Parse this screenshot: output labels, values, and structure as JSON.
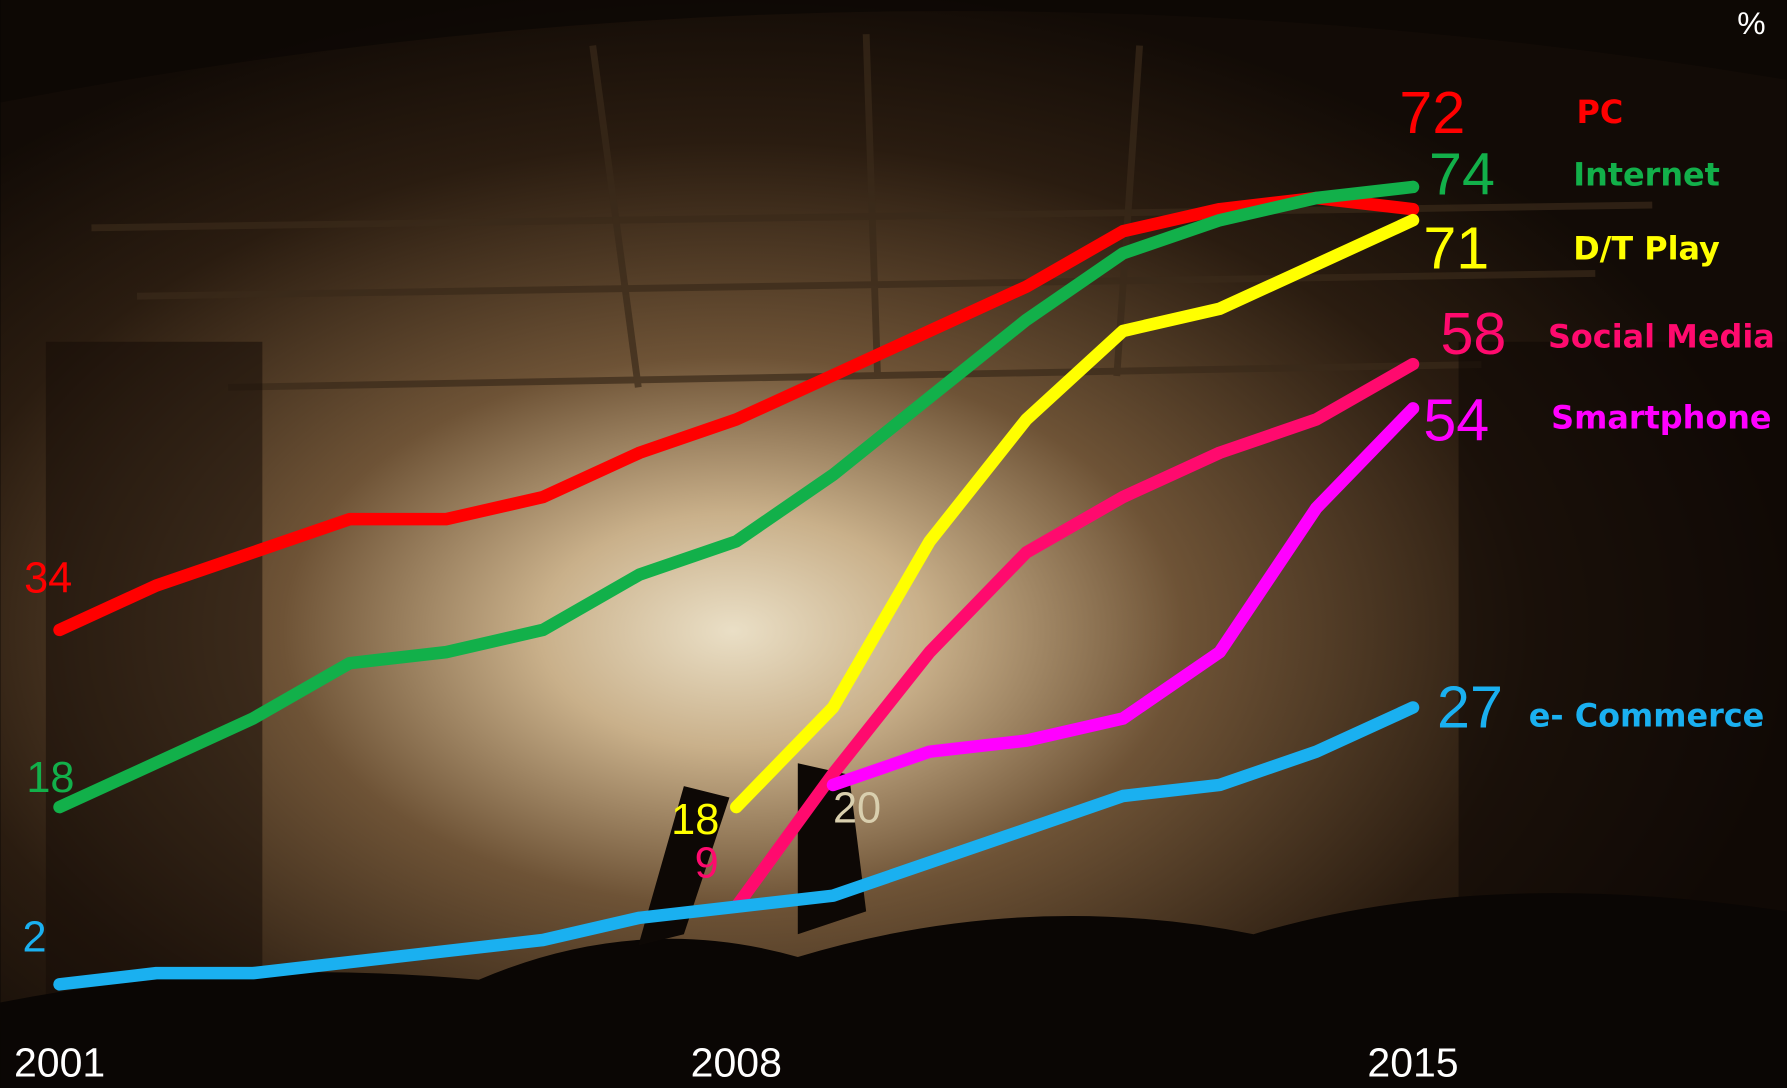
{
  "chart_data": {
    "type": "line",
    "ylabel": "%",
    "x": [
      2001,
      2002,
      2003,
      2004,
      2005,
      2006,
      2007,
      2008,
      2009,
      2010,
      2011,
      2012,
      2013,
      2014,
      2015
    ],
    "xlim": [
      2001,
      2015
    ],
    "xticks": [
      2001,
      2008,
      2015
    ],
    "ylim": [
      0,
      90
    ],
    "series": [
      {
        "name": "PC",
        "color": "#ff0000",
        "values": [
          34,
          38,
          41,
          44,
          44,
          46,
          50,
          53,
          57,
          61,
          65,
          70,
          72,
          73,
          72
        ]
      },
      {
        "name": "Internet",
        "color": "#12b04a",
        "values": [
          18,
          22,
          26,
          31,
          32,
          34,
          39,
          42,
          48,
          55,
          62,
          68,
          71,
          73,
          74
        ]
      },
      {
        "name": "D/T Play",
        "color": "#ffff00",
        "values": [
          null,
          null,
          null,
          null,
          null,
          null,
          null,
          18,
          27,
          42,
          53,
          61,
          63,
          67,
          71
        ]
      },
      {
        "name": "Social Media",
        "color": "#ff0a6e",
        "values": [
          null,
          null,
          null,
          null,
          null,
          null,
          null,
          9,
          21,
          32,
          41,
          46,
          50,
          53,
          58
        ]
      },
      {
        "name": "Smartphone",
        "color": "#ff00ff",
        "values": [
          null,
          null,
          null,
          null,
          null,
          null,
          null,
          null,
          20,
          23,
          24,
          26,
          32,
          45,
          54
        ]
      },
      {
        "name": "e- Commerce",
        "color": "#1ab0f0",
        "values": [
          2,
          3,
          3,
          4,
          5,
          6,
          8,
          9,
          10,
          13,
          16,
          19,
          20,
          23,
          27
        ]
      }
    ]
  }
}
